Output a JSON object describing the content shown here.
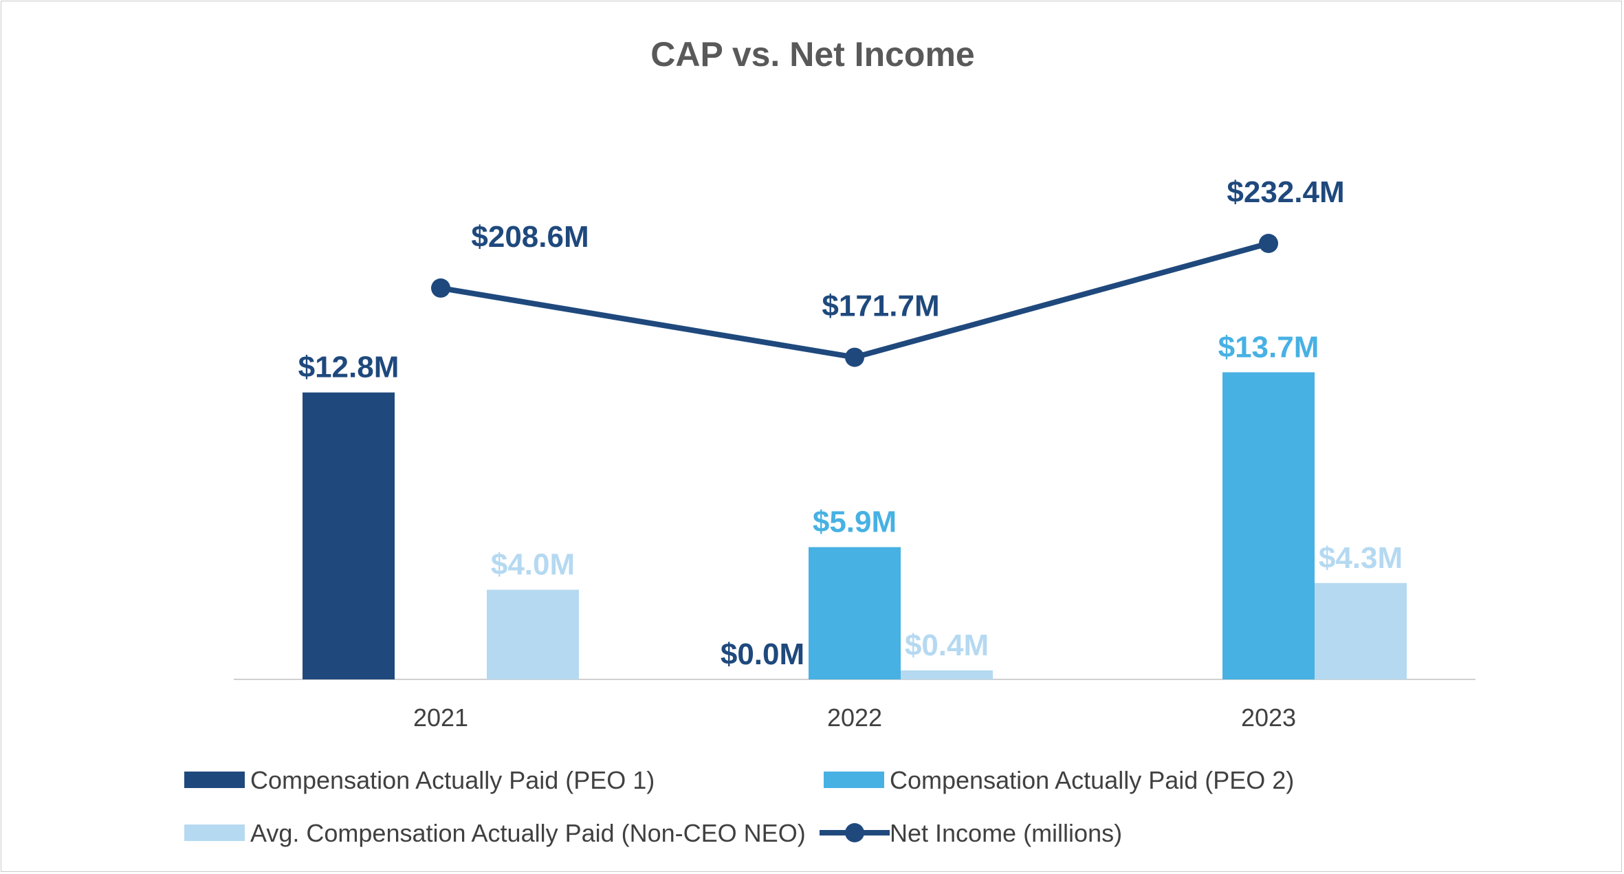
{
  "chart_data": {
    "type": "bar",
    "title": "CAP vs. Net Income",
    "categories": [
      "2021",
      "2022",
      "2023"
    ],
    "bar_ylim": [
      0,
      20
    ],
    "line_ylim": [
      0,
      300
    ],
    "grid": false,
    "legend_placement": "bottom",
    "series": [
      {
        "name": "Compensation Actually Paid (PEO 1)",
        "kind": "bar",
        "color": "#1f497d",
        "values": [
          12.8,
          0.0,
          null
        ],
        "labels": [
          "$12.8M",
          "$0.0M",
          null
        ]
      },
      {
        "name": "Compensation Actually Paid (PEO 2)",
        "kind": "bar",
        "color": "#47b1e3",
        "values": [
          null,
          5.9,
          13.7
        ],
        "labels": [
          null,
          "$5.9M",
          "$13.7M"
        ]
      },
      {
        "name": "Avg. Compensation Actually Paid (Non-CEO NEO)",
        "kind": "bar",
        "color": "#b5d9f1",
        "values": [
          4.0,
          0.4,
          4.3
        ],
        "labels": [
          "$4.0M",
          "$0.4M",
          "$4.3M"
        ]
      },
      {
        "name": "Net Income (millions)",
        "kind": "line",
        "color": "#1f497d",
        "values": [
          208.6,
          171.7,
          232.4
        ],
        "labels": [
          "$208.6M",
          "$171.7M",
          "$232.4M"
        ]
      }
    ]
  }
}
